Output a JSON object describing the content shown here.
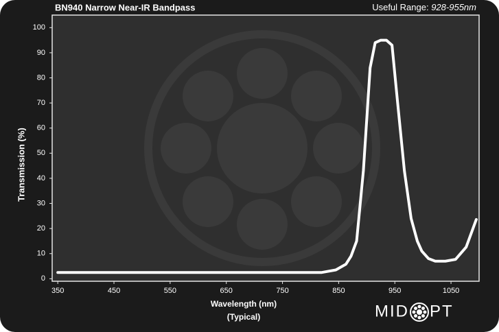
{
  "chart_data": {
    "type": "line",
    "title": "BN940 Narrow Near-IR Bandpass",
    "range_label": "Useful Range:",
    "range_value": "928-955nm",
    "x_label": "Wavelength (nm)",
    "x_sublabel": "(Typical)",
    "y_label": "Transmission (%)",
    "logo_left": "MID",
    "logo_right": "PT",
    "series": [
      {
        "color": "#ffffff",
        "x": [
          350,
          820,
          845,
          863,
          872,
          882,
          894,
          906,
          915,
          925,
          935,
          945,
          955,
          967,
          979,
          990,
          998,
          1010,
          1022,
          1040,
          1058,
          1077,
          1095
        ],
        "values": [
          2.5,
          2.5,
          3.5,
          5.8,
          9,
          15,
          43,
          84,
          94,
          95,
          95,
          93,
          70,
          43,
          24,
          15,
          11,
          8,
          7,
          7,
          7.7,
          12.6,
          23.6
        ]
      }
    ],
    "xlim": [
      340,
      1100
    ],
    "ylim": [
      -1,
      105
    ],
    "xticks": [
      350,
      450,
      550,
      650,
      750,
      850,
      950,
      1050
    ],
    "yticks": [
      0,
      10,
      20,
      30,
      40,
      50,
      60,
      70,
      80,
      90,
      100
    ]
  }
}
